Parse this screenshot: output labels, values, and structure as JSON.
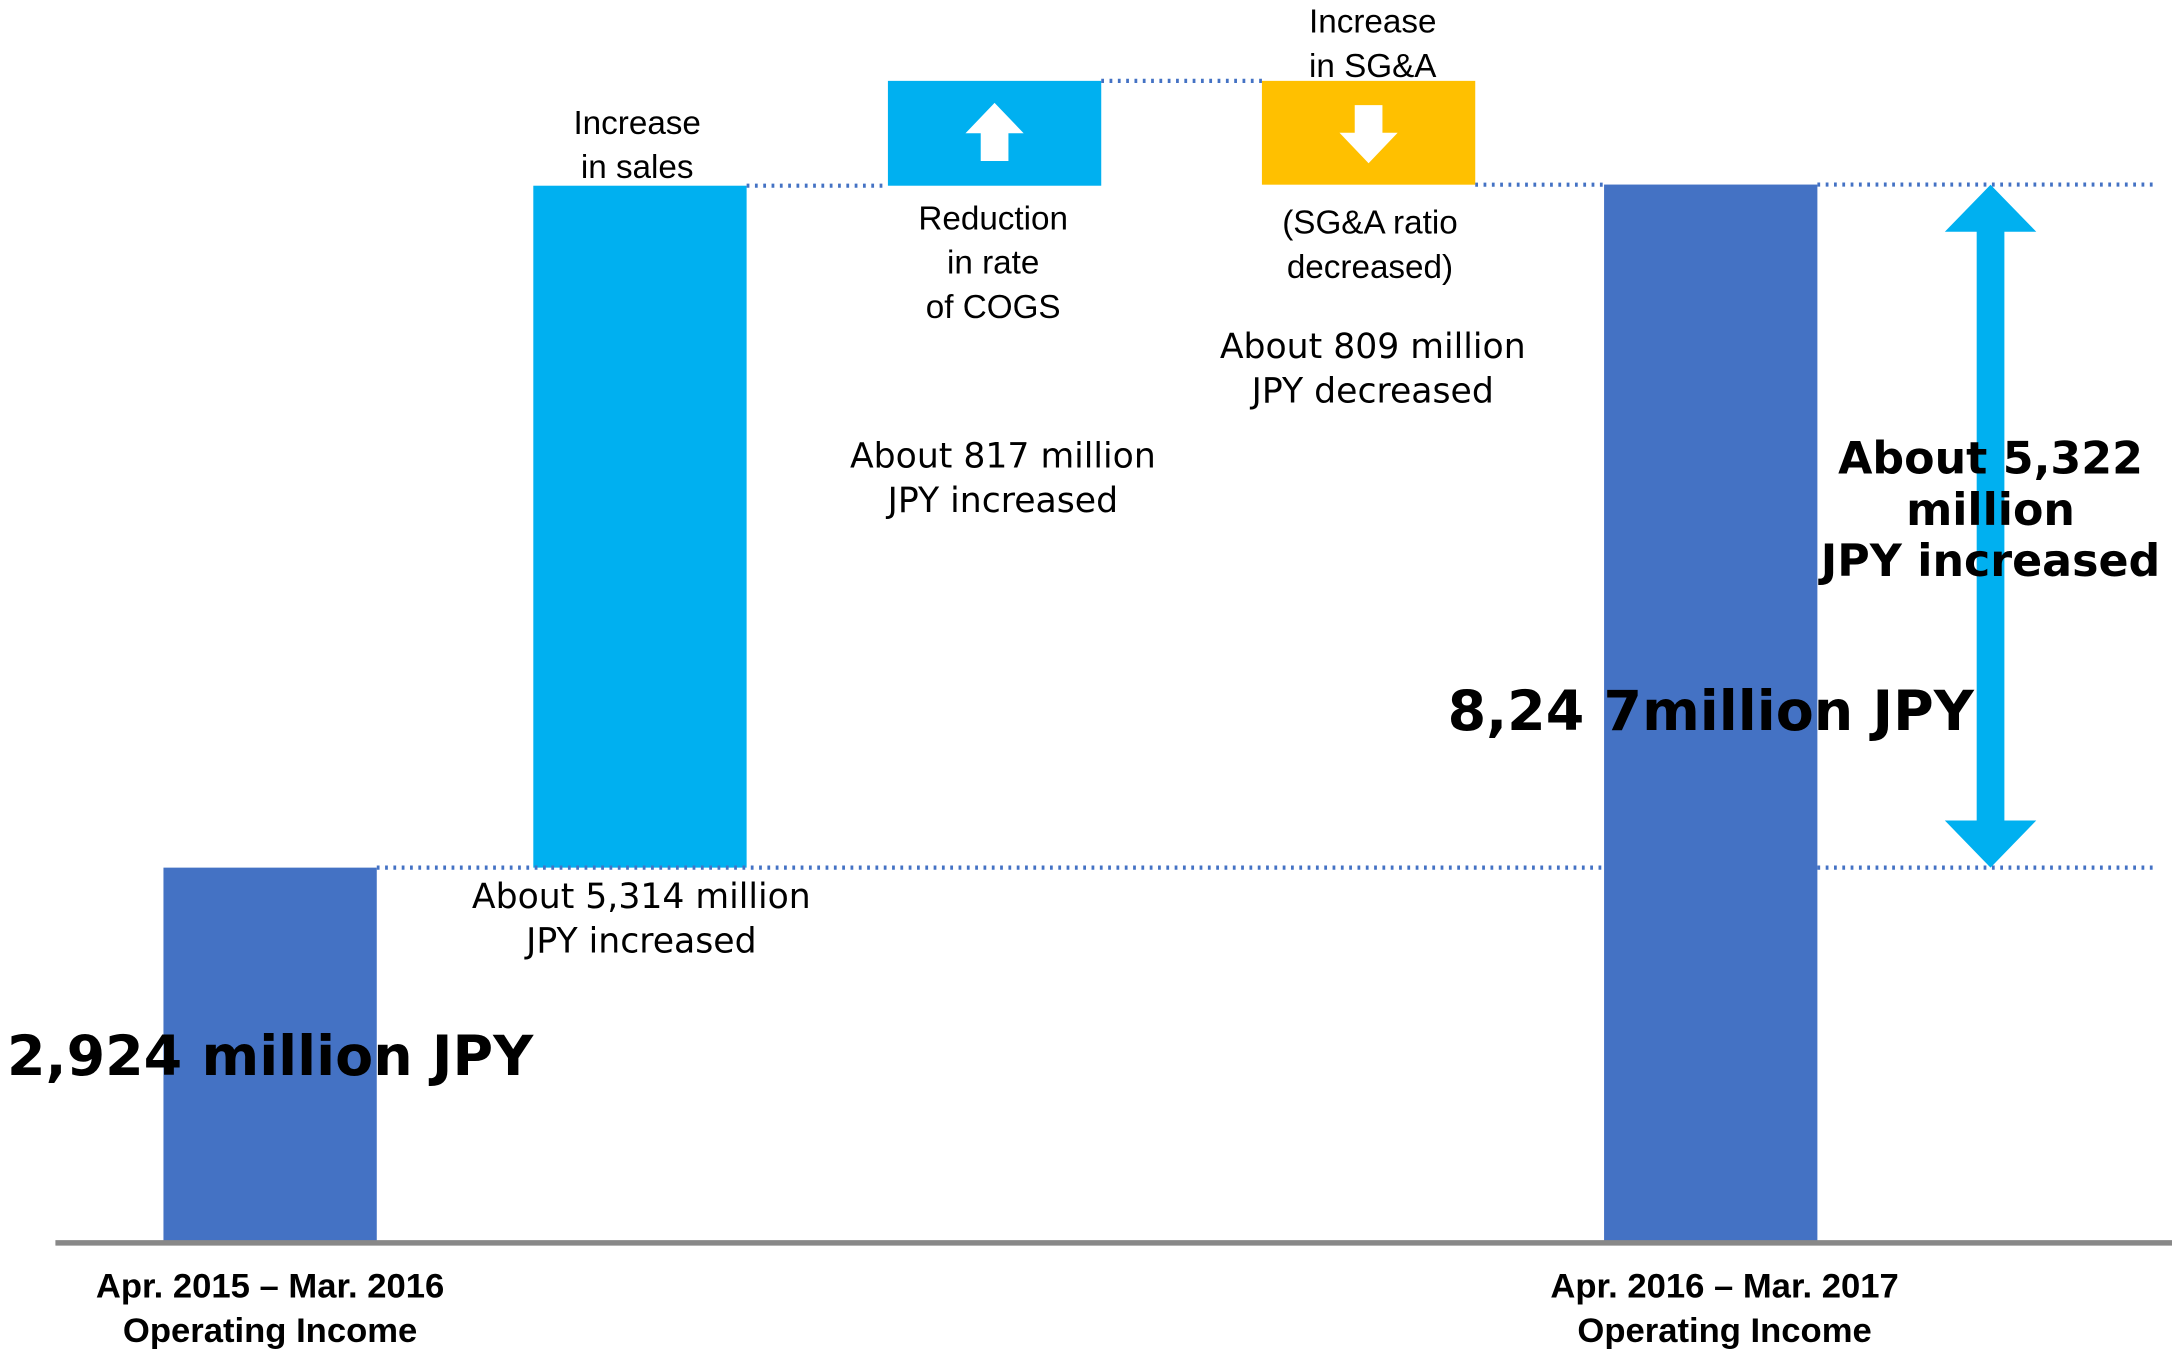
{
  "chart_data": {
    "type": "waterfall",
    "categories": [
      [
        "Apr. 2015 – Mar. 2016",
        "Operating Income"
      ],
      [
        "Increase",
        "in sales"
      ],
      [
        "Reduction",
        "in rate",
        "of COGS"
      ],
      [
        "Increase",
        "in SG&A"
      ],
      [
        "Apr. 2016 – Mar. 2017",
        "Operating Income"
      ]
    ],
    "values": [
      2924,
      5314,
      817,
      -809,
      8247
    ],
    "value_labels": [
      [
        "2,924 million JPY"
      ],
      [
        "About 5,314 million",
        "JPY increased"
      ],
      [
        "About 817 million",
        "JPY increased"
      ],
      [
        "About 809 million",
        "JPY decreased"
      ],
      [
        "8,24 7million JPY"
      ]
    ],
    "colors": [
      "#4472c4",
      "#00b0f0",
      "#00b0f0",
      "#ffc000",
      "#4472c4"
    ],
    "annotations": [
      {
        "text": [
          "(SG&A ratio",
          "decreased)"
        ]
      },
      {
        "text": [
          "About 5,322",
          "million",
          "JPY increased"
        ],
        "value": 5322,
        "color": "#00b0f0"
      }
    ]
  }
}
